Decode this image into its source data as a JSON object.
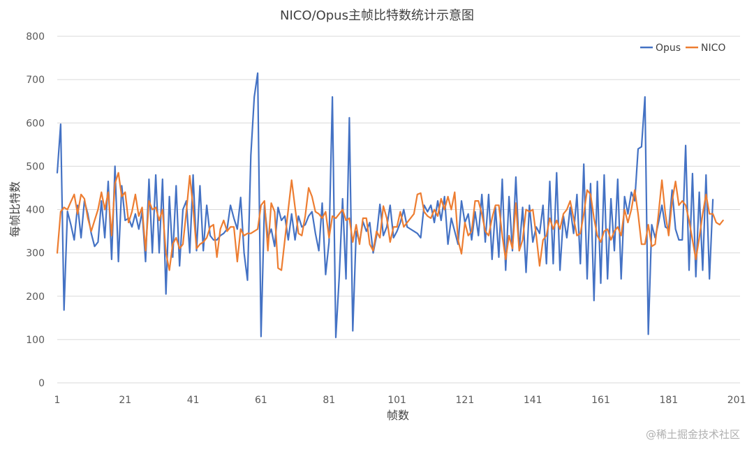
{
  "chart_data": {
    "type": "line",
    "title": "NICO/Opus主帧比特数统计示意图",
    "xlabel": "帧数",
    "ylabel": "每帧比特数",
    "xlim": [
      1,
      202
    ],
    "ylim": [
      0,
      800
    ],
    "x_ticks": [
      1,
      21,
      41,
      61,
      81,
      101,
      121,
      141,
      161,
      181,
      201
    ],
    "y_ticks": [
      0,
      100,
      200,
      300,
      400,
      500,
      600,
      700,
      800
    ],
    "grid": "horizontal",
    "legend_position": "top-right",
    "series": [
      {
        "name": "Opus",
        "color": "#4472c4",
        "values": [
          485,
          597,
          168,
          396,
          365,
          330,
          410,
          335,
          420,
          390,
          345,
          315,
          325,
          420,
          335,
          465,
          285,
          500,
          280,
          455,
          375,
          380,
          360,
          390,
          355,
          395,
          280,
          470,
          300,
          480,
          300,
          470,
          205,
          430,
          290,
          455,
          270,
          400,
          420,
          300,
          480,
          305,
          455,
          305,
          410,
          340,
          330,
          330,
          340,
          345,
          355,
          410,
          380,
          355,
          428,
          300,
          237,
          525,
          660,
          715,
          107,
          410,
          335,
          355,
          315,
          405,
          375,
          385,
          330,
          390,
          330,
          385,
          360,
          365,
          385,
          395,
          345,
          305,
          415,
          250,
          325,
          660,
          105,
          245,
          425,
          240,
          612,
          120,
          350,
          325,
          372,
          350,
          370,
          300,
          340,
          412,
          340,
          360,
          410,
          335,
          350,
          370,
          400,
          360,
          355,
          350,
          345,
          335,
          410,
          395,
          410,
          370,
          420,
          375,
          430,
          320,
          380,
          350,
          320,
          420,
          370,
          390,
          330,
          395,
          340,
          435,
          325,
          435,
          285,
          405,
          290,
          470,
          260,
          430,
          305,
          475,
          305,
          405,
          255,
          410,
          325,
          360,
          345,
          410,
          275,
          465,
          275,
          485,
          260,
          385,
          335,
          405,
          345,
          435,
          275,
          505,
          240,
          460,
          190,
          465,
          230,
          480,
          240,
          425,
          305,
          470,
          240,
          430,
          390,
          440,
          420,
          540,
          545,
          660,
          112,
          365,
          335,
          370,
          410,
          360,
          355,
          445,
          355,
          330,
          330,
          548,
          260,
          483,
          245,
          440,
          260,
          480,
          240,
          423
        ]
      },
      {
        "name": "NICO",
        "color": "#ed7d31",
        "values": [
          300,
          395,
          405,
          400,
          418,
          435,
          390,
          435,
          425,
          380,
          350,
          375,
          400,
          440,
          400,
          440,
          340,
          460,
          485,
          430,
          440,
          370,
          395,
          435,
          385,
          405,
          305,
          420,
          400,
          405,
          375,
          400,
          300,
          260,
          320,
          335,
          310,
          320,
          395,
          478,
          405,
          310,
          320,
          325,
          335,
          360,
          365,
          290,
          355,
          375,
          350,
          360,
          360,
          280,
          355,
          340,
          345,
          345,
          350,
          355,
          410,
          420,
          305,
          415,
          395,
          265,
          260,
          330,
          400,
          468,
          405,
          345,
          340,
          385,
          450,
          430,
          395,
          390,
          380,
          395,
          335,
          385,
          380,
          390,
          400,
          375,
          380,
          325,
          365,
          320,
          380,
          380,
          320,
          305,
          350,
          335,
          408,
          380,
          325,
          360,
          360,
          395,
          360,
          370,
          380,
          390,
          435,
          438,
          395,
          385,
          380,
          400,
          385,
          425,
          400,
          430,
          400,
          440,
          330,
          298,
          370,
          340,
          350,
          420,
          420,
          390,
          350,
          340,
          380,
          410,
          410,
          340,
          285,
          340,
          310,
          415,
          305,
          330,
          400,
          395,
          400,
          340,
          270,
          330,
          340,
          380,
          355,
          375,
          355,
          390,
          400,
          420,
          380,
          340,
          345,
          390,
          445,
          435,
          380,
          340,
          325,
          350,
          355,
          330,
          350,
          360,
          340,
          400,
          370,
          400,
          445,
          390,
          320,
          320,
          365,
          315,
          320,
          390,
          468,
          390,
          340,
          420,
          465,
          410,
          420,
          410,
          375,
          330,
          285,
          335,
          390,
          435,
          390,
          390,
          370,
          365,
          375
        ]
      }
    ]
  },
  "watermark": "@稀土掘金技术社区"
}
